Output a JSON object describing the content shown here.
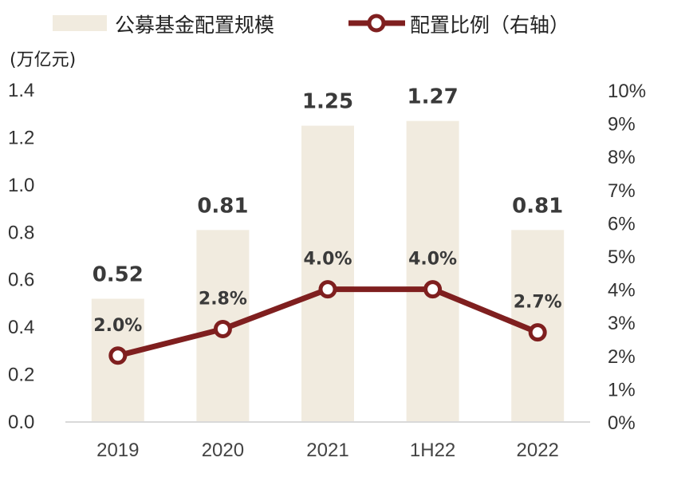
{
  "chart_data": {
    "type": "bar",
    "categories": [
      "2019",
      "2020",
      "2021",
      "1H22",
      "2022"
    ],
    "series": [
      {
        "name": "公募基金配置规模",
        "type": "bar",
        "axis": "left",
        "values": [
          0.52,
          0.81,
          1.25,
          1.27,
          0.81
        ],
        "labels": [
          "0.52",
          "0.81",
          "1.25",
          "1.27",
          "0.81"
        ],
        "color": "#f1ebdf"
      },
      {
        "name": "配置比例（右轴）",
        "type": "line",
        "axis": "right",
        "values": [
          2.0,
          2.8,
          4.0,
          4.0,
          2.7
        ],
        "labels": [
          "2.0%",
          "2.8%",
          "4.0%",
          "4.0%",
          "2.7%"
        ],
        "color": "#7f1f1f"
      }
    ],
    "y_left": {
      "unit": "(万亿元)",
      "range": [
        0,
        1.4
      ],
      "ticks": [
        "0.0",
        "0.2",
        "0.4",
        "0.6",
        "0.8",
        "1.0",
        "1.2",
        "1.4"
      ]
    },
    "y_right": {
      "range": [
        0,
        10
      ],
      "ticks": [
        "0%",
        "1%",
        "2%",
        "3%",
        "4%",
        "5%",
        "6%",
        "7%",
        "8%",
        "9%",
        "10%"
      ]
    },
    "legend_position": "top",
    "grid": false
  }
}
